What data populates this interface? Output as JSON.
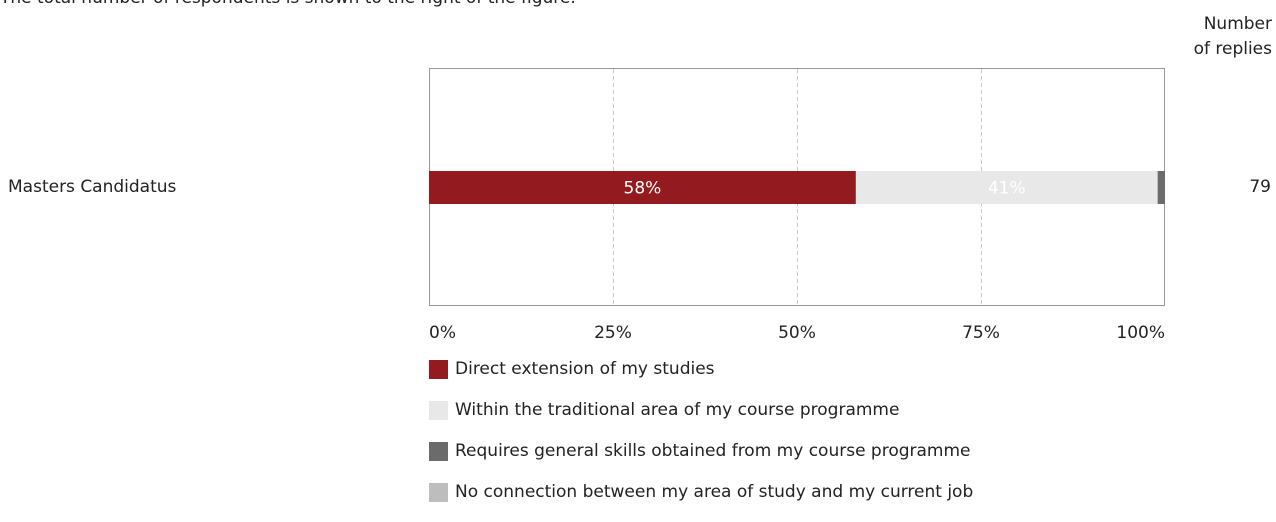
{
  "note": "The total number of respondents is shown to the right of the figure.",
  "count_header": {
    "line1": "Number",
    "line2": "of replies"
  },
  "chart_data": {
    "type": "bar",
    "orientation": "horizontal",
    "stacked": true,
    "categories": [
      "Masters Candidatus"
    ],
    "series": [
      {
        "name": "Direct extension of my studies",
        "values": [
          58
        ],
        "label": "58%",
        "color": "#931a1f",
        "label_color": "#ffffff"
      },
      {
        "name": "Within the traditional area of my course programme",
        "values": [
          41
        ],
        "label": "41%",
        "color": "#e8e8e8",
        "label_color": "#ffffff"
      },
      {
        "name": "Requires general skills obtained from my course programme",
        "values": [
          1
        ],
        "label": "",
        "color": "#6b6b6b",
        "label_color": "#ffffff"
      },
      {
        "name": "No connection between my area of study and my current job",
        "values": [
          0
        ],
        "label": "",
        "color": "#bdbdbd",
        "label_color": "#ffffff"
      }
    ],
    "counts": [
      "79"
    ],
    "xticks": [
      "0%",
      "25%",
      "50%",
      "75%",
      "100%"
    ],
    "xlim": [
      0,
      100
    ],
    "grid": true,
    "legend_position": "bottom"
  }
}
